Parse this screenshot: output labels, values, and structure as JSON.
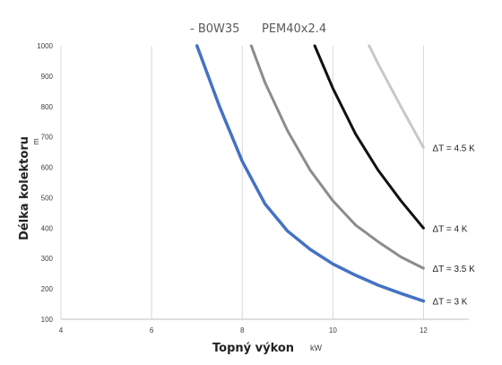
{
  "chart_data": {
    "type": "line",
    "title_parts": [
      "- B0W35",
      "PEM40x2.4"
    ],
    "xlabel": "Topný výkon",
    "xunit": "kW",
    "ylabel": "Délka kolektoru",
    "yunit": "m",
    "xlim": [
      4,
      13
    ],
    "ylim": [
      100,
      1000
    ],
    "xticks": [
      4,
      6,
      8,
      10,
      12
    ],
    "yticks": [
      100,
      200,
      300,
      400,
      500,
      600,
      700,
      800,
      900,
      1000
    ],
    "grid": "vertical",
    "series": [
      {
        "name": "ΔT = 3 K",
        "color": "#4472c4",
        "x": [
          7.0,
          7.5,
          8.0,
          8.5,
          9.0,
          9.5,
          10.0,
          10.5,
          11.0,
          11.5,
          12.0
        ],
        "y": [
          1000,
          800,
          620,
          480,
          390,
          330,
          282,
          245,
          212,
          185,
          160
        ]
      },
      {
        "name": "ΔT = 3.5 K",
        "color": "#8c8c8c",
        "x": [
          8.2,
          8.5,
          9.0,
          9.5,
          10.0,
          10.5,
          11.0,
          11.5,
          12.0
        ],
        "y": [
          1000,
          880,
          720,
          590,
          490,
          410,
          355,
          305,
          268
        ]
      },
      {
        "name": "ΔT = 4 K",
        "color": "#111111",
        "x": [
          9.6,
          10.0,
          10.5,
          11.0,
          11.5,
          12.0
        ],
        "y": [
          1000,
          860,
          710,
          590,
          490,
          400
        ]
      },
      {
        "name": "ΔT = 4.5 K",
        "color": "#c8c8c8",
        "x": [
          10.8,
          11.0,
          11.5,
          12.0
        ],
        "y": [
          1000,
          940,
          800,
          665
        ]
      }
    ]
  }
}
